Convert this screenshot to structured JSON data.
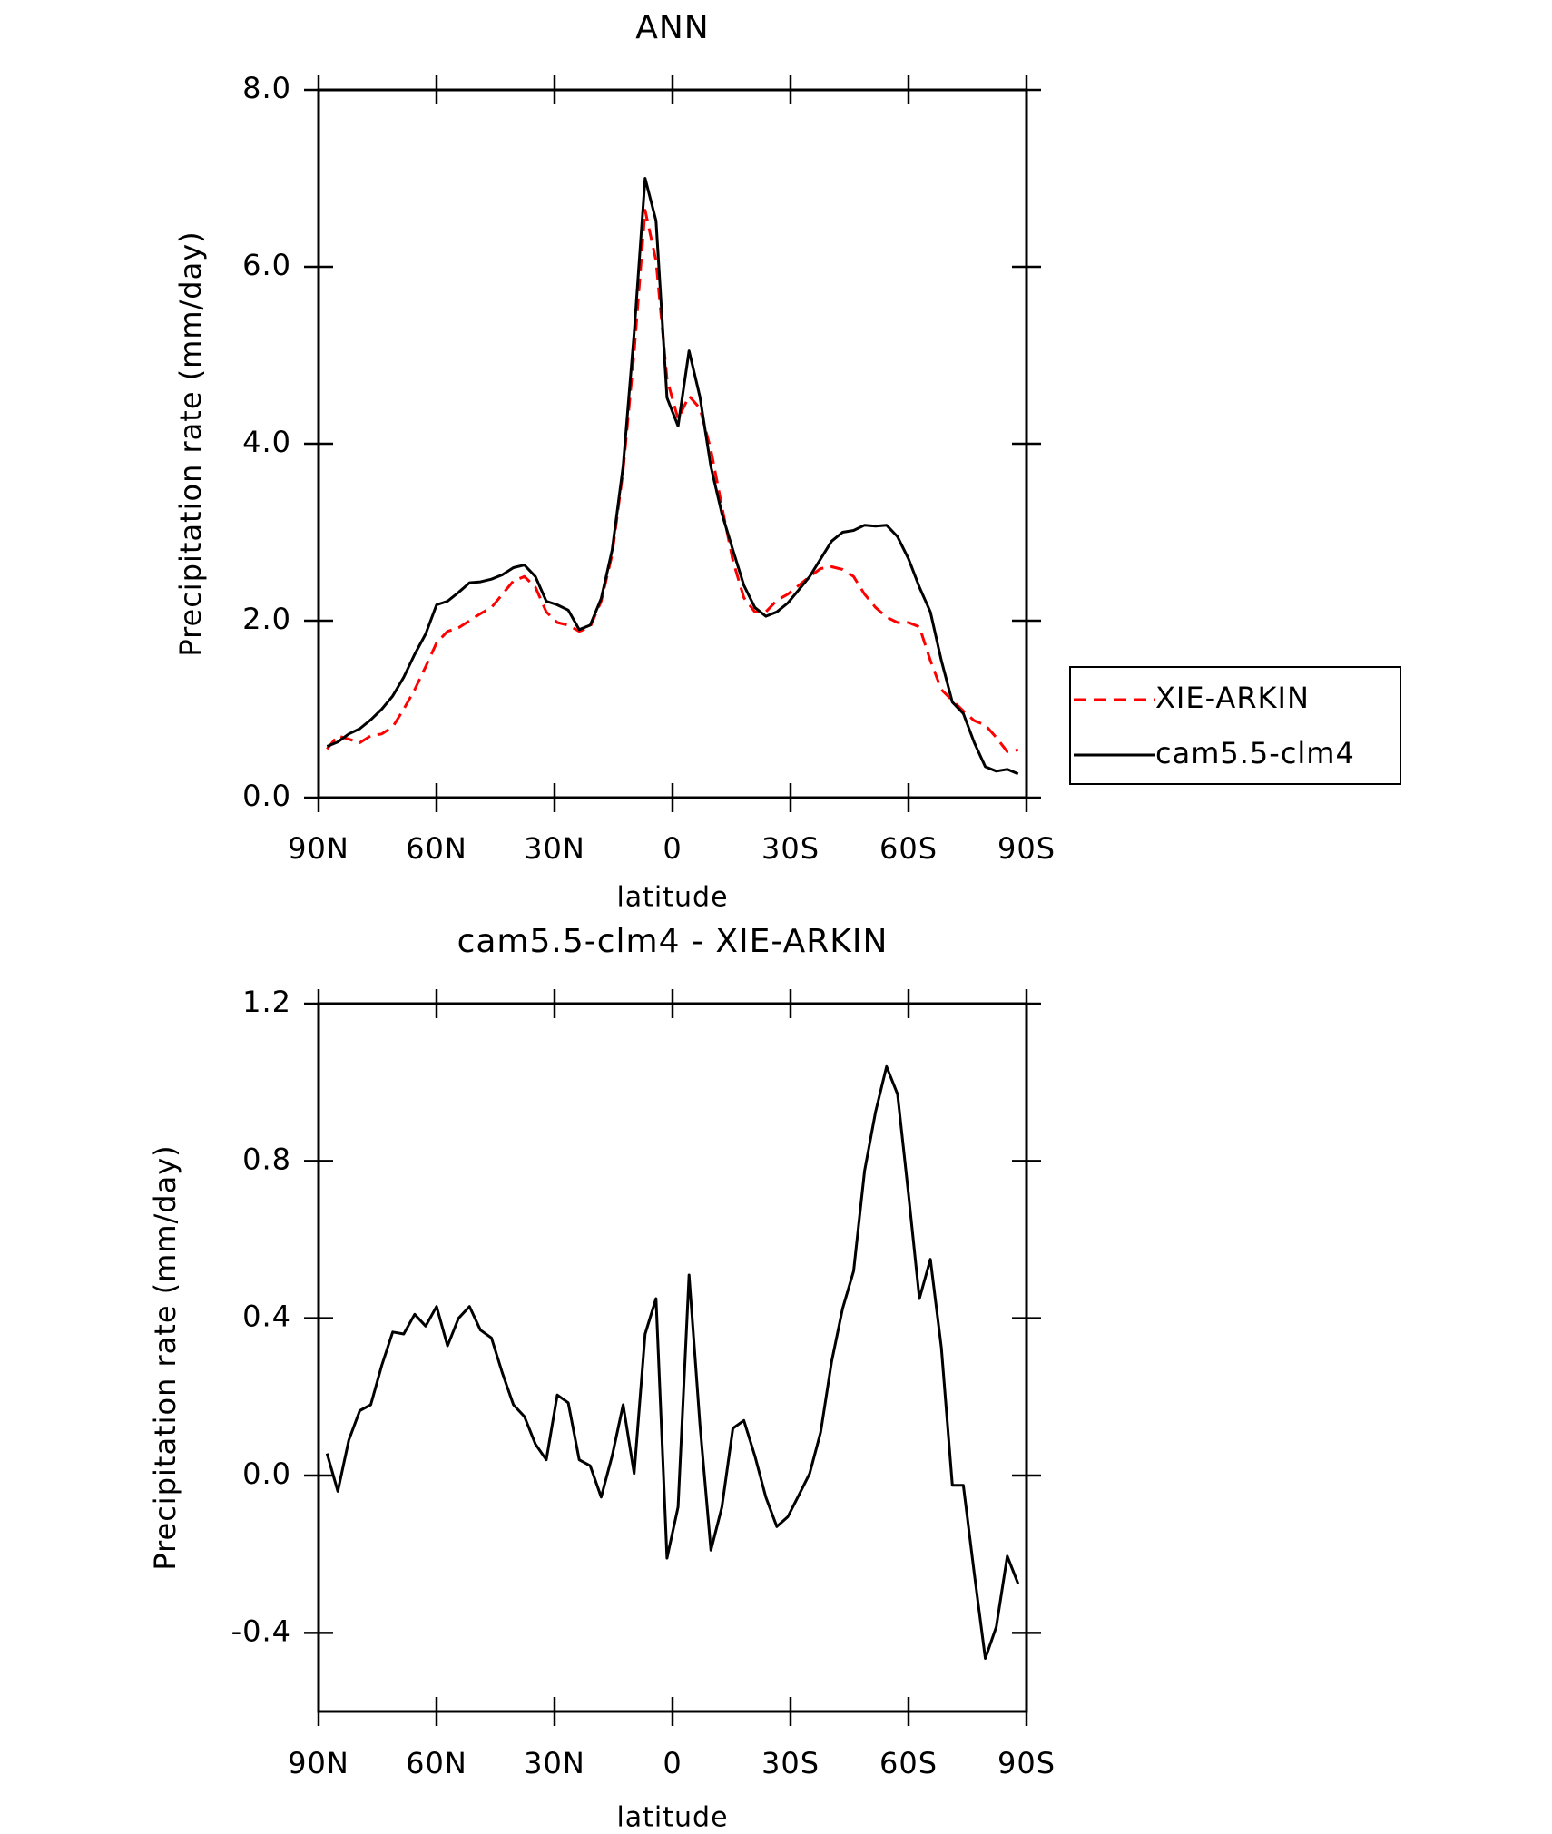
{
  "chart_data": [
    {
      "type": "line",
      "title": "ANN",
      "xlabel": "latitude",
      "ylabel": "Precipitation rate (mm/day)",
      "x": [
        87.86,
        85.1,
        82.31,
        79.52,
        76.73,
        73.94,
        71.15,
        68.36,
        65.57,
        62.78,
        59.99,
        57.2,
        54.41,
        51.62,
        48.83,
        46.04,
        43.25,
        40.46,
        37.67,
        34.88,
        32.09,
        29.3,
        26.51,
        23.72,
        20.93,
        18.14,
        15.35,
        12.56,
        9.77,
        6.98,
        4.19,
        1.4,
        -1.4,
        -4.19,
        -6.98,
        -9.77,
        -12.56,
        -15.35,
        -18.14,
        -20.93,
        -23.72,
        -26.51,
        -29.3,
        -32.09,
        -34.88,
        -37.67,
        -40.46,
        -43.25,
        -46.04,
        -48.83,
        -51.62,
        -54.41,
        -57.2,
        -59.99,
        -62.78,
        -65.57,
        -68.36,
        -71.15,
        -73.94,
        -76.73,
        -79.52,
        -82.31,
        -85.1,
        -87.86
      ],
      "series": [
        {
          "name": "XIE-ARKIN",
          "color": "#ff0000",
          "dashed": true,
          "values": [
            0.55,
            0.7,
            0.66,
            0.62,
            0.7,
            0.72,
            0.8,
            1.0,
            1.22,
            1.48,
            1.75,
            1.88,
            1.92,
            2.0,
            2.08,
            2.15,
            2.3,
            2.45,
            2.5,
            2.38,
            2.1,
            1.98,
            1.95,
            1.88,
            1.93,
            2.22,
            2.75,
            3.7,
            5.03,
            6.64,
            6.07,
            4.73,
            4.28,
            4.54,
            4.4,
            3.93,
            3.29,
            2.68,
            2.26,
            2.1,
            2.1,
            2.23,
            2.3,
            2.4,
            2.5,
            2.59,
            2.61,
            2.58,
            2.5,
            2.3,
            2.15,
            2.04,
            1.98,
            1.98,
            1.93,
            1.55,
            1.22,
            1.1,
            0.98,
            0.87,
            0.82,
            0.68,
            0.52,
            0.54
          ]
        },
        {
          "name": "cam5.5-clm4",
          "color": "#000000",
          "dashed": false,
          "values": [
            0.58,
            0.63,
            0.72,
            0.78,
            0.88,
            1.0,
            1.15,
            1.36,
            1.62,
            1.85,
            2.18,
            2.22,
            2.32,
            2.43,
            2.44,
            2.47,
            2.52,
            2.6,
            2.63,
            2.5,
            2.22,
            2.18,
            2.12,
            1.9,
            1.95,
            2.25,
            2.8,
            3.75,
            5.25,
            7.0,
            6.52,
            4.52,
            4.2,
            5.05,
            4.53,
            3.74,
            3.21,
            2.8,
            2.4,
            2.15,
            2.05,
            2.1,
            2.2,
            2.35,
            2.5,
            2.7,
            2.9,
            3.0,
            3.02,
            3.08,
            3.07,
            3.08,
            2.95,
            2.7,
            2.38,
            2.1,
            1.55,
            1.08,
            0.95,
            0.62,
            0.35,
            0.3,
            0.32,
            0.27
          ]
        }
      ],
      "xlim": [
        90,
        -90
      ],
      "xticks": [
        {
          "value": 90,
          "label": "90N"
        },
        {
          "value": 60,
          "label": "60N"
        },
        {
          "value": 30,
          "label": "30N"
        },
        0,
        {
          "value": -30,
          "label": "30S"
        },
        {
          "value": -60,
          "label": "60S"
        },
        {
          "value": -90,
          "label": "90S"
        }
      ],
      "ylim": [
        0,
        8
      ],
      "yticks": [
        {
          "value": 0,
          "label": "0.0"
        },
        {
          "value": 2,
          "label": "2.0"
        },
        {
          "value": 4,
          "label": "4.0"
        },
        {
          "value": 6,
          "label": "6.0"
        },
        {
          "value": 8,
          "label": "8.0"
        }
      ],
      "legend": "right"
    },
    {
      "type": "line",
      "title": "cam5.5-clm4 - XIE-ARKIN",
      "xlabel": "latitude",
      "ylabel": "Precipitation rate (mm/day)",
      "x": [
        87.86,
        85.1,
        82.31,
        79.52,
        76.73,
        73.94,
        71.15,
        68.36,
        65.57,
        62.78,
        59.99,
        57.2,
        54.41,
        51.62,
        48.83,
        46.04,
        43.25,
        40.46,
        37.67,
        34.88,
        32.09,
        29.3,
        26.51,
        23.72,
        20.93,
        18.14,
        15.35,
        12.56,
        9.77,
        6.98,
        4.19,
        1.4,
        -1.4,
        -4.19,
        -6.98,
        -9.77,
        -12.56,
        -15.35,
        -18.14,
        -20.93,
        -23.72,
        -26.51,
        -29.3,
        -32.09,
        -34.88,
        -37.67,
        -40.46,
        -43.25,
        -46.04,
        -48.83,
        -51.62,
        -54.41,
        -57.2,
        -59.99,
        -62.78,
        -65.57,
        -68.36,
        -71.15,
        -73.94,
        -76.73,
        -79.52,
        -82.31,
        -85.1,
        -87.86
      ],
      "color": "#000000",
      "values": [
        0.056,
        -0.04,
        0.09,
        0.165,
        0.18,
        0.28,
        0.365,
        0.36,
        0.41,
        0.38,
        0.43,
        0.33,
        0.4,
        0.43,
        0.37,
        0.35,
        0.26,
        0.18,
        0.15,
        0.08,
        0.04,
        0.205,
        0.185,
        0.04,
        0.025,
        -0.055,
        0.05,
        0.18,
        0.005,
        0.36,
        0.45,
        -0.21,
        -0.08,
        0.51,
        0.13,
        -0.19,
        -0.08,
        0.12,
        0.14,
        0.05,
        -0.055,
        -0.13,
        -0.105,
        -0.05,
        0.005,
        0.11,
        0.29,
        0.425,
        0.52,
        0.775,
        0.925,
        1.04,
        0.97,
        0.715,
        0.45,
        0.55,
        0.325,
        -0.025,
        -0.025,
        -0.25,
        -0.465,
        -0.385,
        -0.205,
        -0.275
      ],
      "xlim": [
        90,
        -90
      ],
      "xticks": [
        {
          "value": 90,
          "label": "90N"
        },
        {
          "value": 60,
          "label": "60N"
        },
        {
          "value": 30,
          "label": "30N"
        },
        0,
        {
          "value": -30,
          "label": "30S"
        },
        {
          "value": -60,
          "label": "60S"
        },
        {
          "value": -90,
          "label": "90S"
        }
      ],
      "ylim": [
        -0.6,
        1.2
      ],
      "yticks": [
        {
          "value": -0.4,
          "label": "-0.4"
        },
        {
          "value": 0,
          "label": "0.0"
        },
        {
          "value": 0.4,
          "label": "0.4"
        },
        {
          "value": 0.8,
          "label": "0.8"
        },
        {
          "value": 1.2,
          "label": "1.2"
        }
      ]
    }
  ]
}
